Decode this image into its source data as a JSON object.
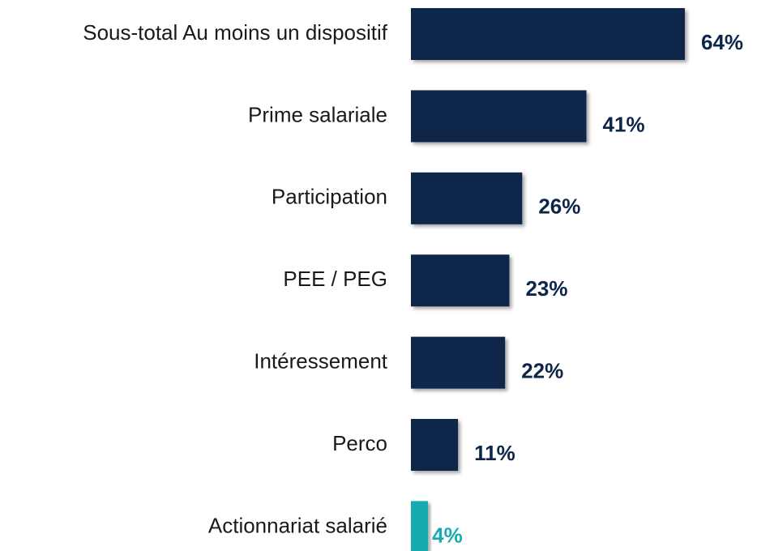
{
  "chart_data": {
    "type": "bar",
    "orientation": "horizontal",
    "categories": [
      "Sous-total Au moins un dispositif",
      "Prime salariale",
      "Participation",
      "PEE / PEG",
      "Intéressement",
      "Perco",
      "Actionnariat salarié"
    ],
    "values": [
      64,
      41,
      26,
      23,
      22,
      11,
      4
    ],
    "value_labels": [
      "64%",
      "41%",
      "26%",
      "23%",
      "22%",
      "11%",
      "4%"
    ],
    "colors": [
      "#0c2549",
      "#0c2549",
      "#0c2549",
      "#0c2549",
      "#0c2549",
      "#0c2549",
      "#17aab0"
    ]
  }
}
